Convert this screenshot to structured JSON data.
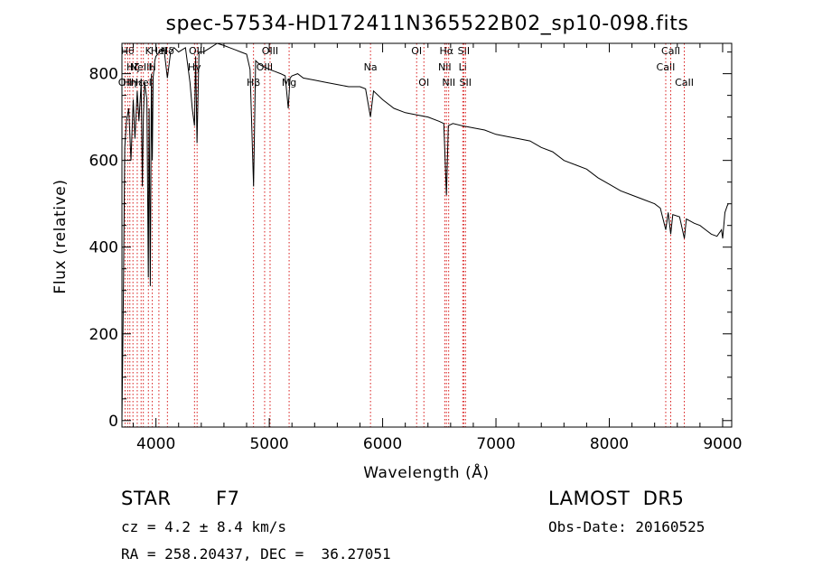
{
  "chart_data": {
    "type": "line",
    "title": "spec-57534-HD172411N365522B02_sp10-098.fits",
    "xlabel": "Wavelength (Å)",
    "ylabel": "Flux (relative)",
    "xlim": [
      3700,
      9080
    ],
    "ylim": [
      -15,
      870
    ],
    "xticks": [
      4000,
      5000,
      6000,
      7000,
      8000,
      9000
    ],
    "yticks": [
      0,
      200,
      400,
      600,
      800
    ],
    "grid": false,
    "series": [
      {
        "x": [
          3700,
          3712,
          3725,
          3740,
          3760,
          3780,
          3800,
          3815,
          3835,
          3850,
          3870,
          3880,
          3889,
          3900,
          3920,
          3933,
          3940,
          3950,
          3960,
          3968,
          3975,
          3990,
          4000,
          4030,
          4070,
          4101,
          4130,
          4160,
          4200,
          4260,
          4300,
          4320,
          4340,
          4350,
          4362,
          4380,
          4420,
          4480,
          4540,
          4600,
          4650,
          4700,
          4750,
          4800,
          4830,
          4861,
          4880,
          4920,
          4960,
          5000,
          5050,
          5100,
          5140,
          5167,
          5183,
          5200,
          5250,
          5300,
          5400,
          5500,
          5600,
          5700,
          5800,
          5850,
          5893,
          5920,
          6000,
          6100,
          6200,
          6300,
          6400,
          6500,
          6540,
          6563,
          6580,
          6620,
          6700,
          6800,
          6900,
          7000,
          7100,
          7200,
          7300,
          7400,
          7500,
          7600,
          7700,
          7800,
          7900,
          8000,
          8100,
          8200,
          8300,
          8400,
          8450,
          8498,
          8520,
          8542,
          8560,
          8620,
          8662,
          8680,
          8750,
          8800,
          8850,
          8900,
          8950,
          8990,
          9000,
          9020,
          9040,
          9050
        ],
        "y": [
          0,
          270,
          630,
          690,
          720,
          600,
          740,
          650,
          760,
          690,
          780,
          540,
          700,
          780,
          740,
          330,
          720,
          310,
          800,
          600,
          790,
          830,
          840,
          850,
          860,
          790,
          850,
          860,
          850,
          860,
          780,
          720,
          680,
          840,
          640,
          850,
          850,
          860,
          870,
          865,
          860,
          855,
          850,
          845,
          810,
          540,
          830,
          820,
          815,
          810,
          805,
          800,
          795,
          720,
          790,
          795,
          800,
          790,
          785,
          780,
          775,
          770,
          770,
          765,
          700,
          760,
          740,
          720,
          710,
          705,
          700,
          690,
          685,
          520,
          680,
          685,
          680,
          675,
          670,
          660,
          655,
          650,
          645,
          630,
          620,
          600,
          590,
          580,
          560,
          545,
          530,
          520,
          510,
          500,
          490,
          440,
          480,
          430,
          475,
          470,
          420,
          465,
          455,
          450,
          440,
          430,
          425,
          440,
          420,
          480,
          495,
          500
        ]
      }
    ],
    "line_markers": [
      {
        "x": 3727,
        "label": "OII",
        "row": 2
      },
      {
        "x": 3750,
        "label": "Hθ",
        "row": 0
      },
      {
        "x": 3770,
        "label": "Hη",
        "row": 2
      },
      {
        "x": 3797,
        "label": "Hζ",
        "row": 1
      },
      {
        "x": 3835,
        "label": "Hε",
        "row": 2
      },
      {
        "x": 3869,
        "label": "NeIII",
        "row": 1
      },
      {
        "x": 3889,
        "label": "HeI",
        "row": 2
      },
      {
        "x": 3933,
        "label": "K",
        "row": 0
      },
      {
        "x": 3968,
        "label": "H",
        "row": 1
      },
      {
        "x": 4026,
        "label": "HeI",
        "row": 0
      },
      {
        "x": 4101,
        "label": "Hδ",
        "row": 0
      },
      {
        "x": 4340,
        "label": "Hγ",
        "row": 1
      },
      {
        "x": 4363,
        "label": "OIII",
        "row": 0
      },
      {
        "x": 4861,
        "label": "Hβ",
        "row": 2
      },
      {
        "x": 4959,
        "label": "OIII",
        "row": 1
      },
      {
        "x": 5007,
        "label": "OIII",
        "row": 0
      },
      {
        "x": 5175,
        "label": "Mg",
        "row": 2
      },
      {
        "x": 5893,
        "label": "Na",
        "row": 1
      },
      {
        "x": 6300,
        "label": "OI",
        "row": 0
      },
      {
        "x": 6364,
        "label": "OI",
        "row": 2
      },
      {
        "x": 6548,
        "label": "NII",
        "row": 1
      },
      {
        "x": 6563,
        "label": "Hα",
        "row": 0
      },
      {
        "x": 6583,
        "label": "NII",
        "row": 2
      },
      {
        "x": 6707,
        "label": "Li",
        "row": 1
      },
      {
        "x": 6716,
        "label": "SII",
        "row": 0
      },
      {
        "x": 6731,
        "label": "SII",
        "row": 2
      },
      {
        "x": 8498,
        "label": "CaII",
        "row": 1
      },
      {
        "x": 8542,
        "label": "CaII",
        "row": 0
      },
      {
        "x": 8662,
        "label": "CaII",
        "row": 2
      }
    ]
  },
  "info": {
    "object_class": "STAR",
    "subclass": "F7",
    "survey": "LAMOST  DR5",
    "redshift": "cz = 4.2 ± 8.4 km/s",
    "obs_date": "Obs-Date: 20160525",
    "coords": "RA = 258.20437, DEC =  36.27051"
  },
  "colors": {
    "line": "#000000",
    "marker": "#d40000"
  }
}
